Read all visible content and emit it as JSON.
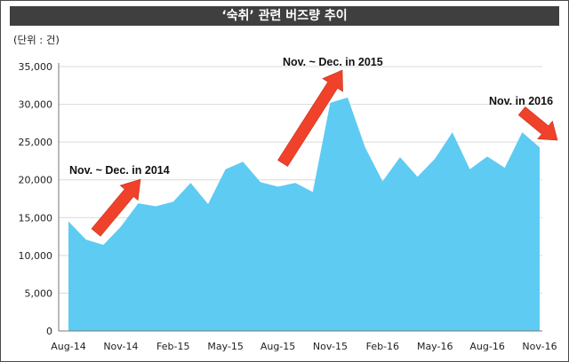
{
  "header": {
    "title": "‘숙취’ 관련 버즈량 추이",
    "unit": "(단위 : 건)"
  },
  "colors": {
    "area": "#5ecbf3",
    "arrow": "#f0412a",
    "title_bg": "#3f3f3f"
  },
  "chart_data": {
    "type": "area",
    "title": "‘숙취’ 관련 버즈량 추이",
    "xlabel": "",
    "ylabel": "",
    "ylim": [
      0,
      35000
    ],
    "y_ticks": [
      0,
      5000,
      10000,
      15000,
      20000,
      25000,
      30000,
      35000
    ],
    "y_tick_labels": [
      "0",
      "5,000",
      "10,000",
      "15,000",
      "20,000",
      "25,000",
      "30,000",
      "35,000"
    ],
    "x_tick_labels": [
      "Aug-14",
      "Nov-14",
      "Feb-15",
      "May-15",
      "Aug-15",
      "Nov-15",
      "Feb-16",
      "May-16",
      "Aug-16",
      "Nov-16"
    ],
    "x_tick_indices": [
      0,
      3,
      6,
      9,
      12,
      15,
      18,
      21,
      24,
      27
    ],
    "months": [
      "Aug-14",
      "Sep-14",
      "Oct-14",
      "Nov-14",
      "Dec-14",
      "Jan-15",
      "Feb-15",
      "Mar-15",
      "Apr-15",
      "May-15",
      "Jun-15",
      "Jul-15",
      "Aug-15",
      "Sep-15",
      "Oct-15",
      "Nov-15",
      "Dec-15",
      "Jan-16",
      "Feb-16",
      "Mar-16",
      "Apr-16",
      "May-16",
      "Jun-16",
      "Jul-16",
      "Aug-16",
      "Sep-16",
      "Oct-16",
      "Nov-16"
    ],
    "values": [
      14500,
      12100,
      11400,
      13800,
      16900,
      16500,
      17100,
      19600,
      16800,
      21400,
      22400,
      19700,
      19100,
      19600,
      18400,
      30200,
      30900,
      24300,
      19800,
      23000,
      20400,
      22800,
      26300,
      21400,
      23100,
      21600,
      26300,
      24300
    ],
    "grid": true,
    "annotations": [
      {
        "text": "Nov. ~ Dec. in 2014",
        "month": "Nov-14"
      },
      {
        "text": "Nov. ~ Dec. in 2015",
        "month": "Nov-15"
      },
      {
        "text": "Nov. in 2016",
        "month": "Nov-16"
      }
    ]
  }
}
